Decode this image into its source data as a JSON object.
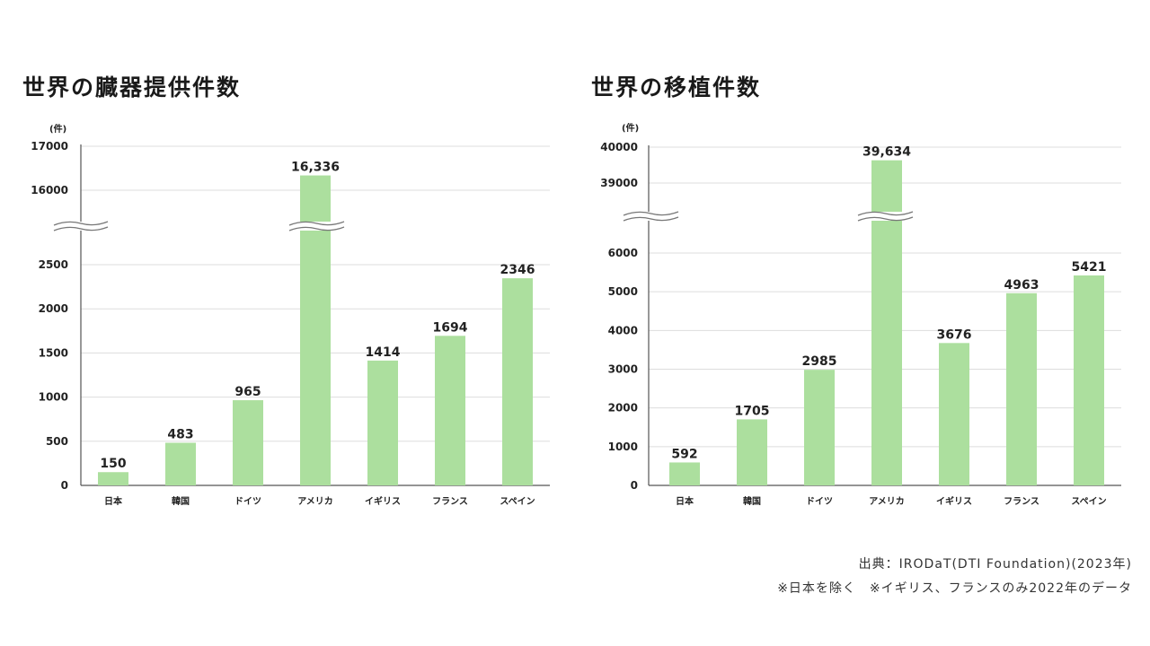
{
  "colors": {
    "bar": "#acdf9e",
    "grid": "#dddddd",
    "axis": "#555555",
    "text": "#222222"
  },
  "footer": {
    "source": "出典：IRODaT(DTI Foundation)(2023年)",
    "note": "※日本を除く　※イギリス、フランスのみ2022年のデータ"
  },
  "chart_data": [
    {
      "type": "bar",
      "title": "世界の臓器提供件数",
      "unit": "(件)",
      "categories": [
        "日本",
        "韓国",
        "ドイツ",
        "アメリカ",
        "イギリス",
        "フランス",
        "スペイン"
      ],
      "values": [
        150,
        483,
        965,
        16336,
        1414,
        1694,
        2346
      ],
      "value_labels": [
        "150",
        "483",
        "965",
        "16,336",
        "1414",
        "1694",
        "2346"
      ],
      "axis_break": {
        "lower_ylim": [
          0,
          2500
        ],
        "upper_ylim": [
          16000,
          17000
        ]
      },
      "y_ticks": [
        "0",
        "500",
        "1000",
        "1500",
        "2000",
        "2500",
        "16000",
        "17000"
      ],
      "grid": true
    },
    {
      "type": "bar",
      "title": "世界の移植件数",
      "unit": "(件)",
      "categories": [
        "日本",
        "韓国",
        "ドイツ",
        "アメリカ",
        "イギリス",
        "フランス",
        "スペイン"
      ],
      "values": [
        592,
        1705,
        2985,
        39634,
        3676,
        4963,
        5421
      ],
      "value_labels": [
        "592",
        "1705",
        "2985",
        "39,634",
        "3676",
        "4963",
        "5421"
      ],
      "axis_break": {
        "lower_ylim": [
          0,
          6000
        ],
        "upper_ylim": [
          39000,
          40000
        ]
      },
      "y_ticks": [
        "0",
        "1000",
        "2000",
        "3000",
        "4000",
        "5000",
        "6000",
        "39000",
        "40000"
      ],
      "grid": true
    }
  ]
}
